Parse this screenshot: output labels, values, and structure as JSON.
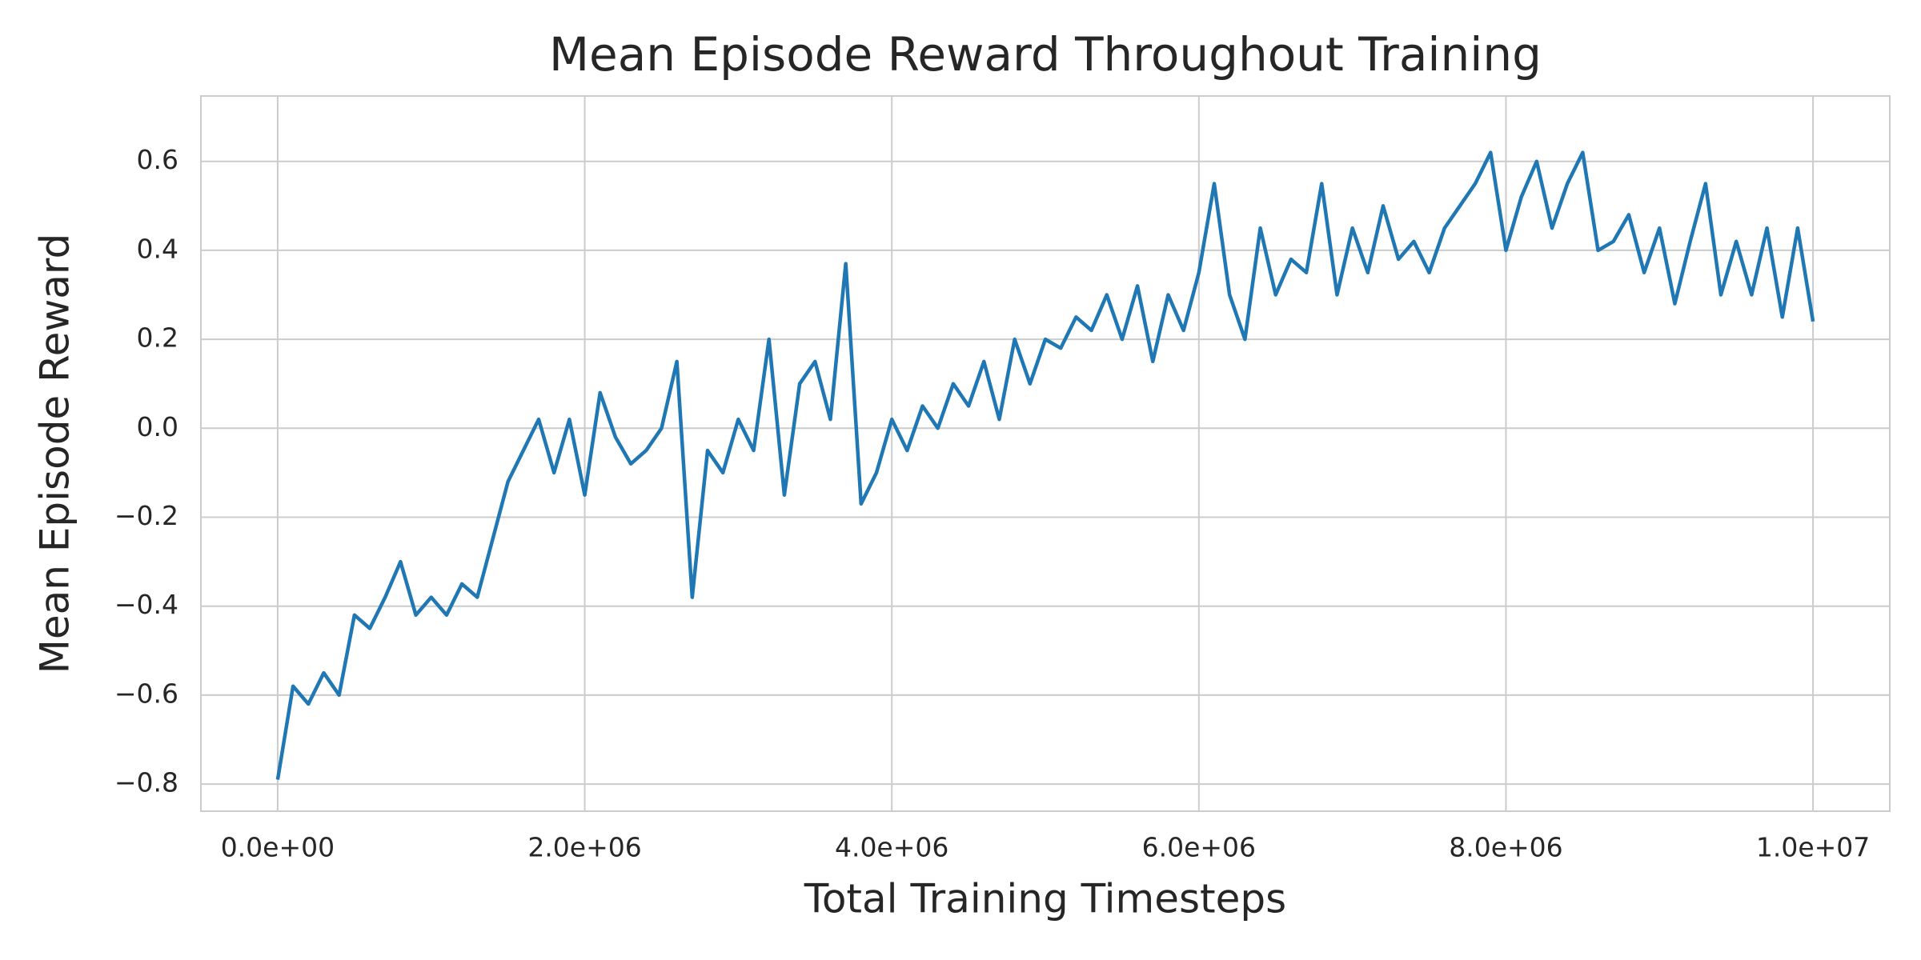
{
  "chart_data": {
    "type": "line",
    "title": "Mean Episode Reward Throughout Training",
    "x_label": "Total Training Timesteps",
    "y_label": "Mean Episode Reward",
    "x": [
      0,
      100000,
      200000,
      300000,
      400000,
      500000,
      600000,
      700000,
      800000,
      900000,
      1000000,
      1100000,
      1200000,
      1300000,
      1400000,
      1500000,
      1600000,
      1700000,
      1800000,
      1900000,
      2000000,
      2100000,
      2200000,
      2300000,
      2400000,
      2500000,
      2600000,
      2700000,
      2800000,
      2900000,
      3000000,
      3100000,
      3200000,
      3300000,
      3400000,
      3500000,
      3600000,
      3700000,
      3800000,
      3900000,
      4000000,
      4100000,
      4200000,
      4300000,
      4400000,
      4500000,
      4600000,
      4700000,
      4800000,
      4900000,
      5000000,
      5100000,
      5200000,
      5300000,
      5400000,
      5500000,
      5600000,
      5700000,
      5800000,
      5900000,
      6000000,
      6100000,
      6200000,
      6300000,
      6400000,
      6500000,
      6600000,
      6700000,
      6800000,
      6900000,
      7000000,
      7100000,
      7200000,
      7300000,
      7400000,
      7500000,
      7600000,
      7700000,
      7800000,
      7900000,
      8000000,
      8100000,
      8200000,
      8300000,
      8400000,
      8500000,
      8600000,
      8700000,
      8800000,
      8900000,
      9000000,
      9100000,
      9200000,
      9300000,
      9400000,
      9500000,
      9600000,
      9700000,
      9800000,
      9900000,
      10000000
    ],
    "series": [
      {
        "name": "Mean Episode Reward",
        "color": "#1f77b4",
        "values": [
          -0.79,
          -0.58,
          -0.62,
          -0.55,
          -0.6,
          -0.42,
          -0.45,
          -0.38,
          -0.3,
          -0.42,
          -0.38,
          -0.42,
          -0.35,
          -0.38,
          -0.25,
          -0.12,
          -0.05,
          0.02,
          -0.1,
          0.02,
          -0.15,
          0.08,
          -0.02,
          -0.08,
          -0.05,
          0.0,
          0.15,
          -0.38,
          -0.05,
          -0.1,
          0.02,
          -0.05,
          0.2,
          -0.15,
          0.1,
          0.15,
          0.02,
          0.37,
          -0.17,
          -0.1,
          0.02,
          -0.05,
          0.05,
          0.0,
          0.1,
          0.05,
          0.15,
          0.02,
          0.2,
          0.1,
          0.2,
          0.18,
          0.25,
          0.22,
          0.3,
          0.2,
          0.32,
          0.15,
          0.3,
          0.22,
          0.35,
          0.55,
          0.3,
          0.2,
          0.45,
          0.3,
          0.38,
          0.35,
          0.55,
          0.3,
          0.45,
          0.35,
          0.5,
          0.38,
          0.42,
          0.35,
          0.45,
          0.5,
          0.55,
          0.62,
          0.4,
          0.52,
          0.6,
          0.45,
          0.55,
          0.62,
          0.4,
          0.42,
          0.48,
          0.35,
          0.45,
          0.28,
          0.42,
          0.55,
          0.3,
          0.42,
          0.3,
          0.45,
          0.25,
          0.45,
          0.24
        ]
      }
    ],
    "xlim": [
      -500000,
      10500000
    ],
    "ylim": [
      -0.861,
      0.747
    ],
    "xticks": [
      {
        "value": 0,
        "label": "0.0e+00"
      },
      {
        "value": 2000000,
        "label": "2.0e+06"
      },
      {
        "value": 4000000,
        "label": "4.0e+06"
      },
      {
        "value": 6000000,
        "label": "6.0e+06"
      },
      {
        "value": 8000000,
        "label": "8.0e+06"
      },
      {
        "value": 10000000,
        "label": "1.0e+07"
      }
    ],
    "yticks": [
      {
        "value": -0.8,
        "label": "−0.8"
      },
      {
        "value": -0.6,
        "label": "−0.6"
      },
      {
        "value": -0.4,
        "label": "−0.4"
      },
      {
        "value": -0.2,
        "label": "−0.2"
      },
      {
        "value": 0.0,
        "label": "0.0"
      },
      0.2,
      0.4,
      0.6
    ],
    "grid": true
  }
}
